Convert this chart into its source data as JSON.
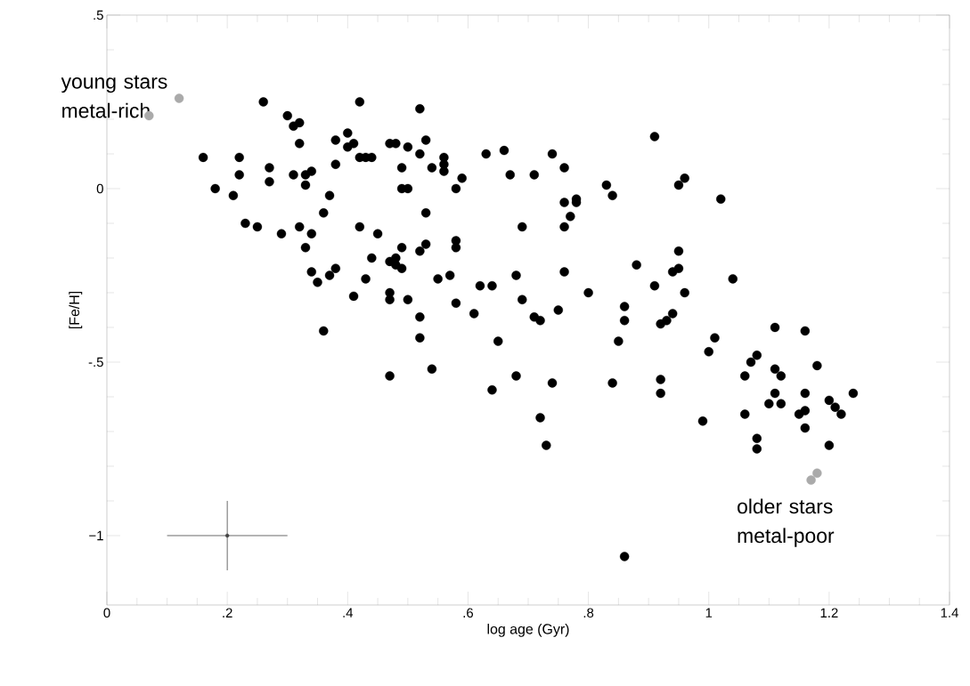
{
  "chart_data": {
    "type": "scatter",
    "xlabel": "log age (Gyr)",
    "ylabel": "[Fe/H]",
    "xlim": [
      0,
      1.4
    ],
    "ylim": [
      -1.2,
      0.5
    ],
    "xticks": [
      0,
      {
        "value": 0.2,
        "label": ".2"
      },
      {
        "value": 0.4,
        "label": ".4"
      },
      {
        "value": 0.6,
        "label": ".6"
      },
      {
        "value": 0.8,
        "label": ".8"
      },
      1,
      {
        "value": 1.2,
        "label": "1.2"
      },
      {
        "value": 1.4,
        "label": "1.4"
      }
    ],
    "yticks": [
      {
        "value": -1,
        "label": "−1"
      },
      {
        "value": -0.5,
        "label": "-.5"
      },
      0,
      {
        "value": 0.5,
        "label": ".5"
      }
    ],
    "marker": "circle",
    "series": [
      {
        "color": "#000000",
        "x": [
          0.16,
          0.18,
          0.21,
          0.22,
          0.22,
          0.23,
          0.25,
          0.26,
          0.27,
          0.27,
          0.29,
          0.3,
          0.31,
          0.31,
          0.32,
          0.32,
          0.32,
          0.33,
          0.33,
          0.33,
          0.34,
          0.34,
          0.34,
          0.35,
          0.36,
          0.36,
          0.37,
          0.37,
          0.38,
          0.38,
          0.38,
          0.4,
          0.4,
          0.41,
          0.41,
          0.42,
          0.42,
          0.42,
          0.43,
          0.43,
          0.44,
          0.44,
          0.45,
          0.47,
          0.47,
          0.47,
          0.47,
          0.47,
          0.48,
          0.48,
          0.48,
          0.49,
          0.49,
          0.49,
          0.49,
          0.5,
          0.5,
          0.5,
          0.52,
          0.52,
          0.52,
          0.52,
          0.52,
          0.53,
          0.53,
          0.53,
          0.54,
          0.54,
          0.55,
          0.56,
          0.56,
          0.56,
          0.57,
          0.58,
          0.58,
          0.58,
          0.58,
          0.59,
          0.61,
          0.62,
          0.63,
          0.64,
          0.64,
          0.65,
          0.66,
          0.67,
          0.68,
          0.68,
          0.69,
          0.69,
          0.71,
          0.71,
          0.72,
          0.72,
          0.73,
          0.74,
          0.74,
          0.75,
          0.76,
          0.76,
          0.76,
          0.76,
          0.77,
          0.78,
          0.78,
          0.8,
          0.83,
          0.84,
          0.84,
          0.85,
          0.86,
          0.86,
          0.86,
          0.88,
          0.91,
          0.91,
          0.92,
          0.92,
          0.92,
          0.93,
          0.94,
          0.94,
          0.95,
          0.95,
          0.95,
          0.96,
          0.96,
          0.99,
          1.0,
          1.01,
          1.02,
          1.04,
          1.06,
          1.06,
          1.07,
          1.08,
          1.08,
          1.08,
          1.1,
          1.11,
          1.11,
          1.11,
          1.12,
          1.12,
          1.15,
          1.16,
          1.16,
          1.16,
          1.16,
          1.18,
          1.2,
          1.2,
          1.21,
          1.22,
          1.24
        ],
        "values": [
          0.09,
          0.0,
          -0.02,
          0.09,
          0.04,
          -0.1,
          -0.11,
          0.25,
          0.06,
          0.02,
          -0.13,
          0.21,
          0.18,
          0.04,
          0.19,
          0.13,
          -0.11,
          0.04,
          0.01,
          -0.17,
          0.05,
          -0.13,
          -0.24,
          -0.27,
          -0.07,
          -0.41,
          -0.02,
          -0.25,
          0.14,
          0.07,
          -0.23,
          0.16,
          0.12,
          0.13,
          -0.31,
          0.25,
          0.09,
          -0.11,
          0.09,
          -0.26,
          0.09,
          -0.2,
          -0.13,
          0.13,
          -0.21,
          -0.3,
          -0.32,
          -0.54,
          0.13,
          -0.2,
          -0.22,
          0.06,
          0.0,
          -0.17,
          -0.23,
          0.12,
          0.0,
          -0.32,
          0.23,
          0.1,
          -0.18,
          -0.37,
          -0.43,
          0.14,
          -0.07,
          -0.16,
          0.06,
          -0.52,
          -0.26,
          0.09,
          0.07,
          0.05,
          -0.25,
          0.0,
          -0.15,
          -0.17,
          -0.33,
          0.03,
          -0.36,
          -0.28,
          0.1,
          -0.28,
          -0.58,
          -0.44,
          0.11,
          0.04,
          -0.25,
          -0.54,
          -0.11,
          -0.32,
          0.04,
          -0.37,
          -0.38,
          -0.66,
          -0.74,
          0.1,
          -0.56,
          -0.35,
          0.06,
          -0.04,
          -0.11,
          -0.24,
          -0.08,
          -0.03,
          -0.04,
          -0.3,
          0.01,
          -0.02,
          -0.56,
          -0.44,
          -0.34,
          -0.38,
          -1.06,
          -0.22,
          0.15,
          -0.28,
          -0.39,
          -0.55,
          -0.59,
          -0.38,
          -0.24,
          -0.36,
          0.01,
          -0.18,
          -0.23,
          0.03,
          -0.3,
          -0.67,
          -0.47,
          -0.43,
          -0.03,
          -0.26,
          -0.54,
          -0.65,
          -0.5,
          -0.48,
          -0.72,
          -0.75,
          -0.62,
          -0.4,
          -0.52,
          -0.59,
          -0.54,
          -0.62,
          -0.65,
          -0.41,
          -0.59,
          -0.64,
          -0.69,
          -0.51,
          -0.61,
          -0.74,
          -0.63,
          -0.65,
          -0.59
        ]
      },
      {
        "color": "#aaaaaa",
        "x": [
          0.07,
          0.12,
          1.17,
          1.18
        ],
        "values": [
          0.21,
          0.26,
          -0.84,
          -0.82
        ]
      },
      {
        "color": "#444444",
        "marker": "none",
        "x": [
          0.2
        ],
        "values": [
          -1
        ],
        "errors": [
          0.1
        ],
        "xerrors": [
          0.1
        ]
      }
    ],
    "annotations": [
      {
        "text": "young stars metal-rich",
        "x": 0.12,
        "y": 0.26
      },
      {
        "text": "older stars metal-poor",
        "x": 1.17,
        "y": -0.84
      }
    ]
  }
}
